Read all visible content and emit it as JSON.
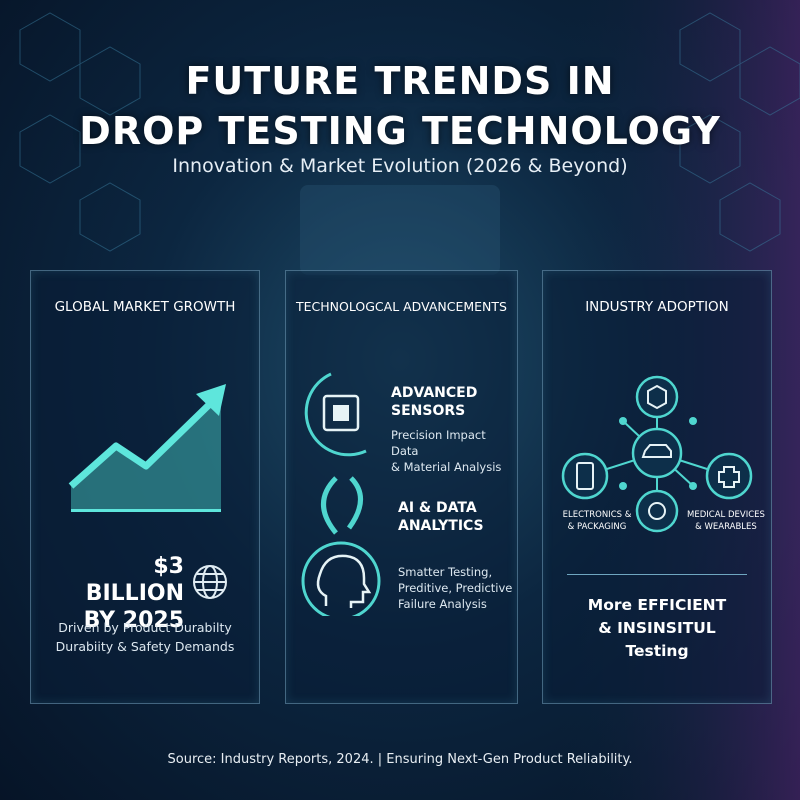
{
  "header": {
    "title_lines": [
      "FUTURE TRENDS IN",
      "DROP TESTING TECHNOLOGY"
    ],
    "subtitle": "Innovation & Market Evolution (2026 & Beyond)"
  },
  "panels": [
    {
      "title": "GLOBAL MARKET GROWTH",
      "stat_lines": [
        "$3 BILLION",
        "BY 2025"
      ],
      "description_lines": [
        "Driven by Product Durabilty",
        "Durabiity & Safety Demands"
      ]
    },
    {
      "title": "TECHNOLOGCAL ADVANCEMENTS",
      "items": [
        {
          "heading_lines": [
            "ADVANCED",
            "SENSORS"
          ],
          "text_lines": [
            "Precision Impact Data",
            "& Material Analysis"
          ]
        },
        {
          "heading_lines": [
            "AI & DATA",
            "ANALYTICS"
          ],
          "text_lines": [
            "Smatter Testing,",
            "Preditive, Predictive",
            "Failure Analysis"
          ]
        }
      ]
    },
    {
      "title": "INDUSTRY ADOPTION",
      "node_labels": [
        [
          "ELECTRONICS &",
          "& PACKAGING"
        ],
        [
          "MEDICAL DEVICES",
          "& WEARABLES"
        ]
      ],
      "conclusion_lines": [
        "More EFFICIENT",
        "& INSINSITUL",
        "Testing"
      ]
    }
  ],
  "footer": {
    "source": "Source: Industry Reports, 2024. | Ensuring Next-Gen Product Reliability."
  }
}
